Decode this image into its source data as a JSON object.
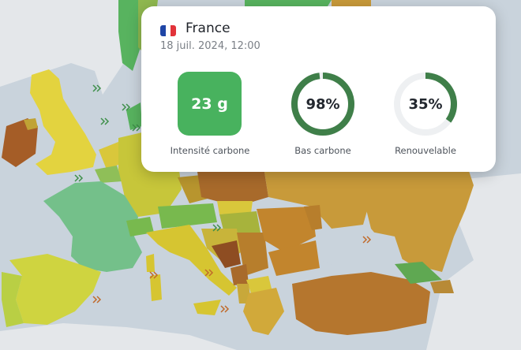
{
  "map": {
    "colors": {
      "ocean": "#c9d3dc",
      "land_outside": "#e4e7ea",
      "uk": "#e3d33f",
      "ireland": "#a55d27",
      "france": "#74c08a",
      "spain": "#cfd440",
      "portugal": "#b9cf44",
      "scandinavia_green": "#58b35f",
      "italy": "#d6c531",
      "central_yellow": "#d9c73b",
      "central_green": "#78b94e",
      "poland": "#a86a2b",
      "east_brown": "#b77e2c",
      "balkan_brown": "#c2852d",
      "turkey": "#b5762e",
      "georgia": "#5fa852",
      "russia": "#c89a3a",
      "dark_brown": "#8e4d22"
    },
    "icons": [
      "wind-icon",
      "solar-icon"
    ]
  },
  "card": {
    "country": "France",
    "flag_colors": [
      "#1f45a6",
      "#ffffff",
      "#e2333a"
    ],
    "timestamp": "18 juil. 2024, 12:00",
    "carbon_intensity": {
      "value": "23 g",
      "label": "Intensité carbone",
      "color": "#48b25e"
    },
    "low_carbon": {
      "value": "98%",
      "fraction": 0.98,
      "label": "Bas carbone",
      "color": "#3f7f49"
    },
    "renewable": {
      "value": "35%",
      "fraction": 0.35,
      "label": "Renouvelable",
      "color": "#3f7f49"
    },
    "ring_track_color": "#eef0f2"
  }
}
